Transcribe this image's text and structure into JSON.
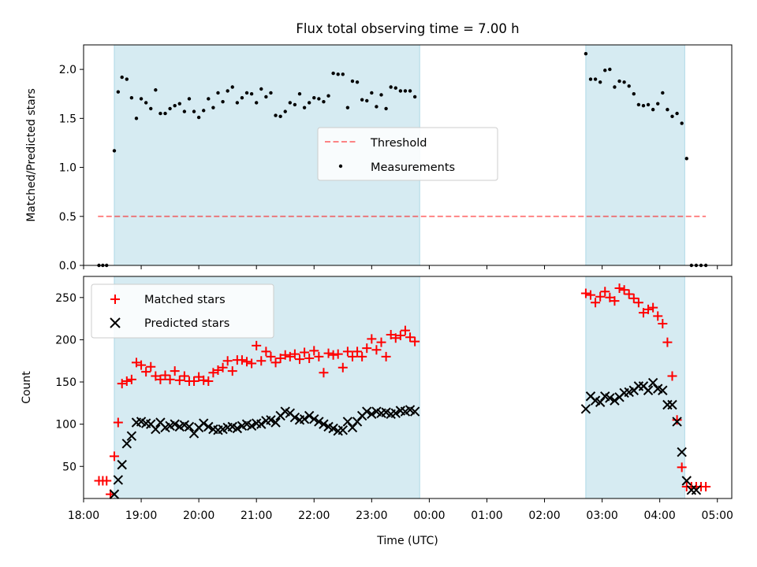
{
  "figure": {
    "title": "Flux total observing time = 7.00 h",
    "colors": {
      "shade": "#add8e6",
      "measurements": "#000000",
      "threshold": "#ff0000",
      "matched": "#ff0000",
      "predicted": "#000000"
    }
  },
  "chart_data": [
    {
      "type": "scatter",
      "title": "Flux total observing time = 7.00 h",
      "ylabel": "Matched/Predicted stars",
      "xlim": [
        "18:00",
        "05:15"
      ],
      "ylim": [
        0,
        2.25
      ],
      "yticks": [
        "0.0",
        "0.5",
        "1.0",
        "1.5",
        "2.0"
      ],
      "legend": {
        "placement": "center",
        "entries": [
          "Threshold",
          "Measurements"
        ]
      },
      "shaded_spans": [
        [
          "18:32",
          "23:50"
        ],
        [
          "02:43",
          "04:26"
        ]
      ],
      "threshold": {
        "name": "Threshold",
        "value": 0.5,
        "x": [
          "18:15",
          "04:48"
        ]
      },
      "measurements": {
        "name": "Measurements",
        "x": [
          "18:16",
          "18:20",
          "18:24",
          "18:32",
          "18:36",
          "18:40",
          "18:45",
          "18:50",
          "18:55",
          "19:00",
          "19:05",
          "19:10",
          "19:15",
          "19:20",
          "19:25",
          "19:30",
          "19:35",
          "19:40",
          "19:45",
          "19:50",
          "19:55",
          "20:00",
          "20:05",
          "20:10",
          "20:15",
          "20:20",
          "20:25",
          "20:30",
          "20:35",
          "20:40",
          "20:45",
          "20:50",
          "20:55",
          "21:00",
          "21:05",
          "21:10",
          "21:15",
          "21:20",
          "21:25",
          "21:30",
          "21:35",
          "21:40",
          "21:45",
          "21:50",
          "21:55",
          "22:00",
          "22:05",
          "22:10",
          "22:15",
          "22:20",
          "22:25",
          "22:30",
          "22:35",
          "22:40",
          "22:45",
          "22:50",
          "22:55",
          "23:00",
          "23:05",
          "23:10",
          "23:15",
          "23:20",
          "23:25",
          "23:30",
          "23:35",
          "23:40",
          "23:45",
          "02:43",
          "02:48",
          "02:53",
          "02:58",
          "03:03",
          "03:08",
          "03:13",
          "03:18",
          "03:23",
          "03:28",
          "03:33",
          "03:38",
          "03:43",
          "03:48",
          "03:53",
          "03:58",
          "04:03",
          "04:08",
          "04:13",
          "04:18",
          "04:23",
          "04:28",
          "04:33",
          "04:38",
          "04:43",
          "04:48"
        ],
        "y": [
          0,
          0,
          0,
          1.17,
          1.77,
          1.92,
          1.9,
          1.71,
          1.5,
          1.7,
          1.66,
          1.6,
          1.79,
          1.55,
          1.55,
          1.6,
          1.63,
          1.65,
          1.57,
          1.7,
          1.57,
          1.51,
          1.58,
          1.7,
          1.61,
          1.76,
          1.67,
          1.78,
          1.82,
          1.66,
          1.71,
          1.76,
          1.75,
          1.66,
          1.8,
          1.72,
          1.76,
          1.53,
          1.52,
          1.57,
          1.66,
          1.64,
          1.75,
          1.61,
          1.66,
          1.71,
          1.7,
          1.67,
          1.73,
          1.96,
          1.95,
          1.95,
          1.61,
          1.88,
          1.87,
          1.69,
          1.68,
          1.76,
          1.62,
          1.74,
          1.6,
          1.82,
          1.81,
          1.78,
          1.78,
          1.78,
          1.72,
          2.16,
          1.9,
          1.9,
          1.87,
          1.99,
          2.0,
          1.82,
          1.88,
          1.87,
          1.83,
          1.75,
          1.64,
          1.63,
          1.64,
          1.59,
          1.65,
          1.76,
          1.59,
          1.52,
          1.55,
          1.45,
          1.09,
          0,
          0,
          0,
          0
        ]
      }
    },
    {
      "type": "scatter",
      "xlabel": "Time (UTC)",
      "ylabel": "Count",
      "xlim": [
        "18:00",
        "05:15"
      ],
      "ylim": [
        12,
        275
      ],
      "xticks": [
        "18:00",
        "19:00",
        "20:00",
        "21:00",
        "22:00",
        "23:00",
        "00:00",
        "01:00",
        "02:00",
        "03:00",
        "04:00",
        "05:00"
      ],
      "yticks": [
        "50",
        "100",
        "150",
        "200",
        "250"
      ],
      "legend": {
        "placement": "upper left",
        "entries": [
          "Matched stars",
          "Predicted stars"
        ]
      },
      "shaded_spans": [
        [
          "18:32",
          "23:50"
        ],
        [
          "02:43",
          "04:26"
        ]
      ],
      "series": [
        {
          "name": "Matched stars",
          "marker": "+",
          "x": [
            "18:16",
            "18:20",
            "18:24",
            "18:28",
            "18:32",
            "18:36",
            "18:40",
            "18:45",
            "18:50",
            "18:55",
            "19:00",
            "19:05",
            "19:10",
            "19:15",
            "19:20",
            "19:25",
            "19:30",
            "19:35",
            "19:40",
            "19:45",
            "19:50",
            "19:55",
            "20:00",
            "20:05",
            "20:10",
            "20:15",
            "20:20",
            "20:25",
            "20:30",
            "20:35",
            "20:40",
            "20:45",
            "20:50",
            "20:55",
            "21:00",
            "21:05",
            "21:10",
            "21:15",
            "21:20",
            "21:25",
            "21:30",
            "21:35",
            "21:40",
            "21:45",
            "21:50",
            "21:55",
            "22:00",
            "22:05",
            "22:10",
            "22:15",
            "22:20",
            "22:25",
            "22:30",
            "22:35",
            "22:40",
            "22:45",
            "22:50",
            "22:55",
            "23:00",
            "23:05",
            "23:10",
            "23:15",
            "23:20",
            "23:25",
            "23:30",
            "23:35",
            "23:40",
            "23:45",
            "02:43",
            "02:48",
            "02:53",
            "02:58",
            "03:03",
            "03:08",
            "03:13",
            "03:18",
            "03:23",
            "03:28",
            "03:33",
            "03:38",
            "03:43",
            "03:48",
            "03:53",
            "03:58",
            "04:03",
            "04:08",
            "04:13",
            "04:18",
            "04:23",
            "04:28",
            "04:33",
            "04:38",
            "04:43",
            "04:48"
          ],
          "y": [
            33,
            33,
            33,
            17,
            62,
            102,
            148,
            151,
            153,
            173,
            170,
            162,
            168,
            157,
            153,
            158,
            153,
            163,
            152,
            157,
            151,
            151,
            156,
            152,
            151,
            161,
            164,
            167,
            175,
            163,
            176,
            176,
            174,
            172,
            193,
            175,
            186,
            180,
            173,
            178,
            182,
            180,
            183,
            177,
            185,
            178,
            187,
            180,
            161,
            184,
            182,
            183,
            167,
            186,
            180,
            186,
            180,
            190,
            201,
            188,
            197,
            180,
            206,
            202,
            205,
            211,
            203,
            198,
            255,
            253,
            244,
            251,
            257,
            250,
            246,
            261,
            259,
            254,
            249,
            244,
            232,
            236,
            238,
            228,
            219,
            197,
            157,
            105,
            49,
            26,
            26,
            26,
            26,
            26
          ]
        },
        {
          "name": "Predicted stars",
          "marker": "x",
          "x": [
            "18:32",
            "18:36",
            "18:40",
            "18:45",
            "18:50",
            "18:55",
            "19:00",
            "19:05",
            "19:10",
            "19:15",
            "19:20",
            "19:25",
            "19:30",
            "19:35",
            "19:40",
            "19:45",
            "19:50",
            "19:55",
            "20:00",
            "20:05",
            "20:10",
            "20:15",
            "20:20",
            "20:25",
            "20:30",
            "20:35",
            "20:40",
            "20:45",
            "20:50",
            "20:55",
            "21:00",
            "21:05",
            "21:10",
            "21:15",
            "21:20",
            "21:25",
            "21:30",
            "21:35",
            "21:40",
            "21:45",
            "21:50",
            "21:55",
            "22:00",
            "22:05",
            "22:10",
            "22:15",
            "22:20",
            "22:25",
            "22:30",
            "22:35",
            "22:40",
            "22:45",
            "22:50",
            "22:55",
            "23:00",
            "23:05",
            "23:10",
            "23:15",
            "23:20",
            "23:25",
            "23:30",
            "23:35",
            "23:40",
            "23:45",
            "02:43",
            "02:48",
            "02:53",
            "02:58",
            "03:03",
            "03:08",
            "03:13",
            "03:18",
            "03:23",
            "03:28",
            "03:33",
            "03:38",
            "03:43",
            "03:48",
            "03:53",
            "03:58",
            "04:03",
            "04:08",
            "04:13",
            "04:18",
            "04:23",
            "04:28",
            "04:33",
            "04:38"
          ],
          "y": [
            17,
            34,
            52,
            77,
            86,
            102,
            103,
            101,
            100,
            94,
            102,
            96,
            98,
            100,
            97,
            99,
            97,
            89,
            96,
            101,
            97,
            94,
            93,
            94,
            96,
            97,
            95,
            98,
            100,
            98,
            101,
            100,
            104,
            105,
            102,
            110,
            115,
            113,
            108,
            105,
            106,
            110,
            106,
            103,
            100,
            97,
            95,
            92,
            93,
            103,
            96,
            103,
            110,
            115,
            112,
            115,
            113,
            114,
            112,
            113,
            116,
            115,
            117,
            115,
            118,
            133,
            128,
            126,
            133,
            131,
            128,
            132,
            137,
            138,
            140,
            145,
            145,
            140,
            149,
            142,
            140,
            123,
            123,
            103,
            67,
            33,
            22,
            22
          ]
        }
      ]
    }
  ]
}
